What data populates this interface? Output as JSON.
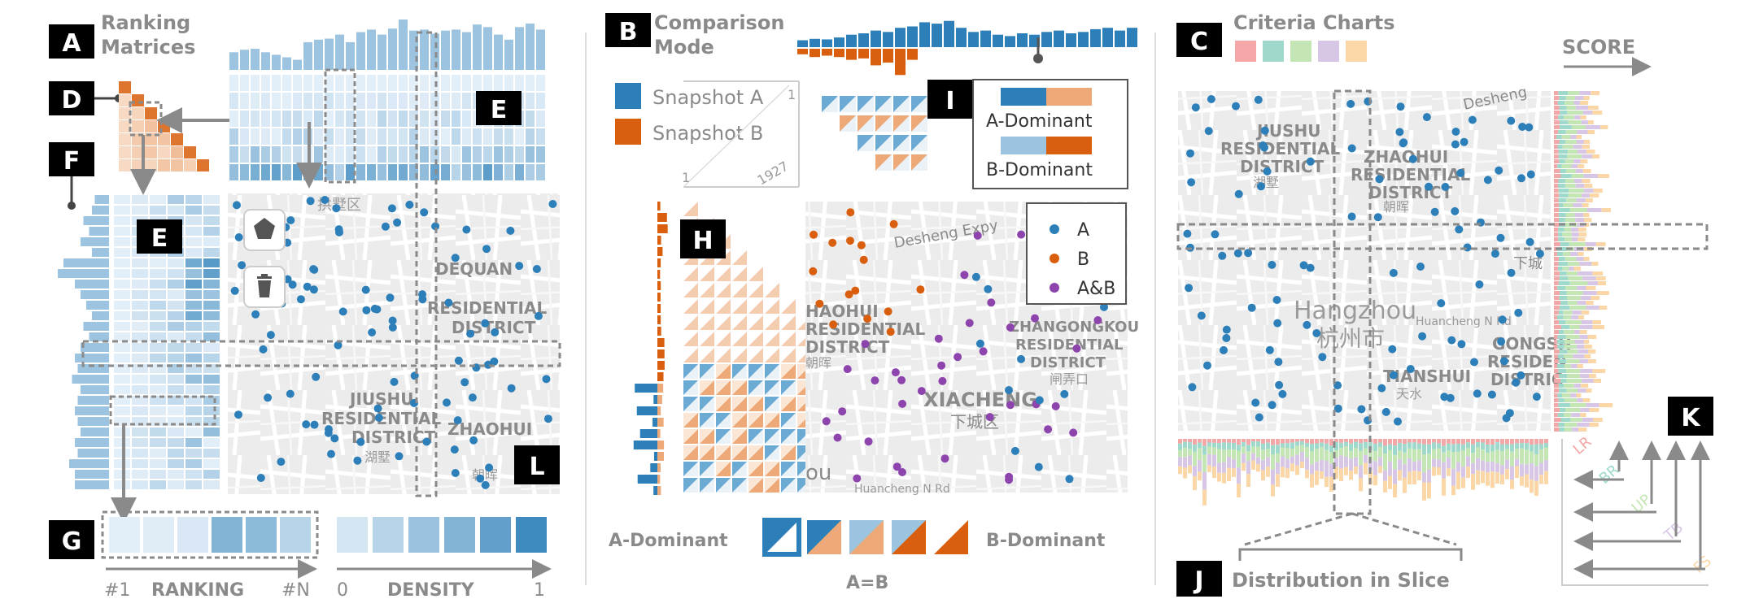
{
  "colors": {
    "blue": "#2c7fb8",
    "orange": "#d95f0e",
    "gray_text": "#8a8a8a",
    "map_bg": "#eeeeee",
    "criteria": [
      "#f4a7a7",
      "#9ed9cc",
      "#c4e6b4",
      "#d8c6e6",
      "#fbd7a8"
    ]
  },
  "panel_a": {
    "badge": "A",
    "title_line1": "Ranking",
    "title_line2": "Matrices",
    "badge_d": "D",
    "badge_e": "E",
    "badge_f": "F",
    "badge_g": "G",
    "badge_l": "L",
    "map_district_1": "拱墅区",
    "map_district_2": "JIUSHU",
    "map_district_3": "RESIDENTIAL",
    "map_district_4": "DISTRICT",
    "map_district_5": "ZHAOHUI",
    "map_district_6": "湖墅",
    "map_district_7": "朝晖",
    "map_district_8": "DEQUAN",
    "map_district_9": "RESIDENTIAL",
    "map_district_10": "DISTRICT",
    "axis_ranking_left": "#1",
    "axis_ranking_title": "RANKING",
    "axis_ranking_right": "#N",
    "axis_density_left": "0",
    "axis_density_title": "DENSITY",
    "axis_density_right": "1",
    "polygon_tool_icon": "pentagon-icon",
    "delete_tool_icon": "trash-icon",
    "density_legend": [
      0.12,
      0.28,
      0.42,
      0.55,
      0.72,
      0.9
    ],
    "ranking_legend": [
      0.05,
      0.06,
      0.1,
      0.55,
      0.5,
      0.28
    ],
    "top_histogram": [
      0.35,
      0.4,
      0.42,
      0.35,
      0.3,
      0.25,
      0.2,
      0.55,
      0.6,
      0.62,
      0.7,
      0.55,
      0.75,
      0.8,
      0.7,
      0.82,
      1.0,
      0.78,
      0.8,
      0.72,
      0.78,
      0.8,
      0.75,
      0.9,
      0.85,
      0.7,
      0.6,
      0.85,
      0.92,
      0.8
    ],
    "left_histogram": [
      0.25,
      0.3,
      0.45,
      0.35,
      0.5,
      0.3,
      0.8,
      0.9,
      0.6,
      0.5,
      0.4,
      0.3,
      0.45,
      0.35,
      0.5,
      0.6,
      0.55,
      0.65,
      0.5,
      0.55,
      0.6,
      0.55,
      0.5,
      0.6,
      0.55,
      0.7,
      0.6,
      0.6
    ]
  },
  "panel_b": {
    "badge": "B",
    "title_line1": "Comparison",
    "title_line2": "Mode",
    "legend_a": "Snapshot A",
    "legend_b": "Snapshot B",
    "axis_tick_1": "1",
    "axis_tick_1927": "1927",
    "badge_h": "H",
    "badge_i": "I",
    "i_a_dominant": "A-Dominant",
    "i_b_dominant": "B-Dominant",
    "map_legend_a": "A",
    "map_legend_b": "B",
    "map_legend_ab": "A&B",
    "map_text_1": "Desheng Expy",
    "map_text_2": "HAOHUI",
    "map_text_3": "RESIDENTIAL",
    "map_text_4": "DISTRICT",
    "map_text_5": "朝晖",
    "map_text_6": "ZHANGONGKOU",
    "map_text_7": "RESIDENTIAL",
    "map_text_8": "DISTRICT",
    "map_text_9": "闸弄口",
    "map_text_10": "XIACHENG",
    "map_text_11": "下城区",
    "map_text_12": "ou",
    "map_text_13": "Huancheng N Rd",
    "bottom_a_dominant": "A-Dominant",
    "bottom_b_dominant": "B-Dominant",
    "bottom_equal": "A=B",
    "top_histogram_a": [
      0.25,
      0.3,
      0.28,
      0.35,
      0.45,
      0.5,
      0.6,
      0.55,
      0.7,
      0.75,
      0.9,
      0.85,
      0.95,
      0.7,
      0.55,
      0.6,
      0.45,
      0.4,
      0.5,
      0.45,
      0.55,
      0.6,
      0.5,
      0.55,
      0.65,
      0.7,
      0.6,
      0.7
    ],
    "top_histogram_b": [
      0.2,
      0.3,
      0.25,
      0.3,
      0.4,
      0.35,
      0.6,
      0.5,
      0.95,
      0.4,
      0,
      0,
      0,
      0,
      0,
      0,
      0,
      0,
      0,
      0,
      0,
      0,
      0,
      0,
      0,
      0,
      0,
      0
    ]
  },
  "panel_c": {
    "badge": "C",
    "title": "Criteria Charts",
    "score_label": "SCORE",
    "badge_j": "J",
    "j_label": "Distribution in Slice",
    "badge_k": "K",
    "criteria_labels": [
      "LR",
      "BR",
      "UP",
      "TB",
      "FS"
    ],
    "map_text_1": "Desheng",
    "map_text_2": "JIUSHU",
    "map_text_3": "RESIDENTIAL",
    "map_text_4": "DISTRICT",
    "map_text_5": "湖墅",
    "map_text_6": "ZHAOHUI",
    "map_text_7": "RESIDENTIAL",
    "map_text_8": "DISTRICT",
    "map_text_9": "朝晖",
    "map_text_10": "Hangzhou",
    "map_text_11": "杭州市",
    "map_text_12": "Huancheng N Rd",
    "map_text_13": "TIANSHUI",
    "map_text_14": "天水",
    "map_text_15": "GONGSH",
    "map_text_16": "RESIDEN",
    "map_text_17": "DISTRIC",
    "map_text_18": "下城"
  }
}
